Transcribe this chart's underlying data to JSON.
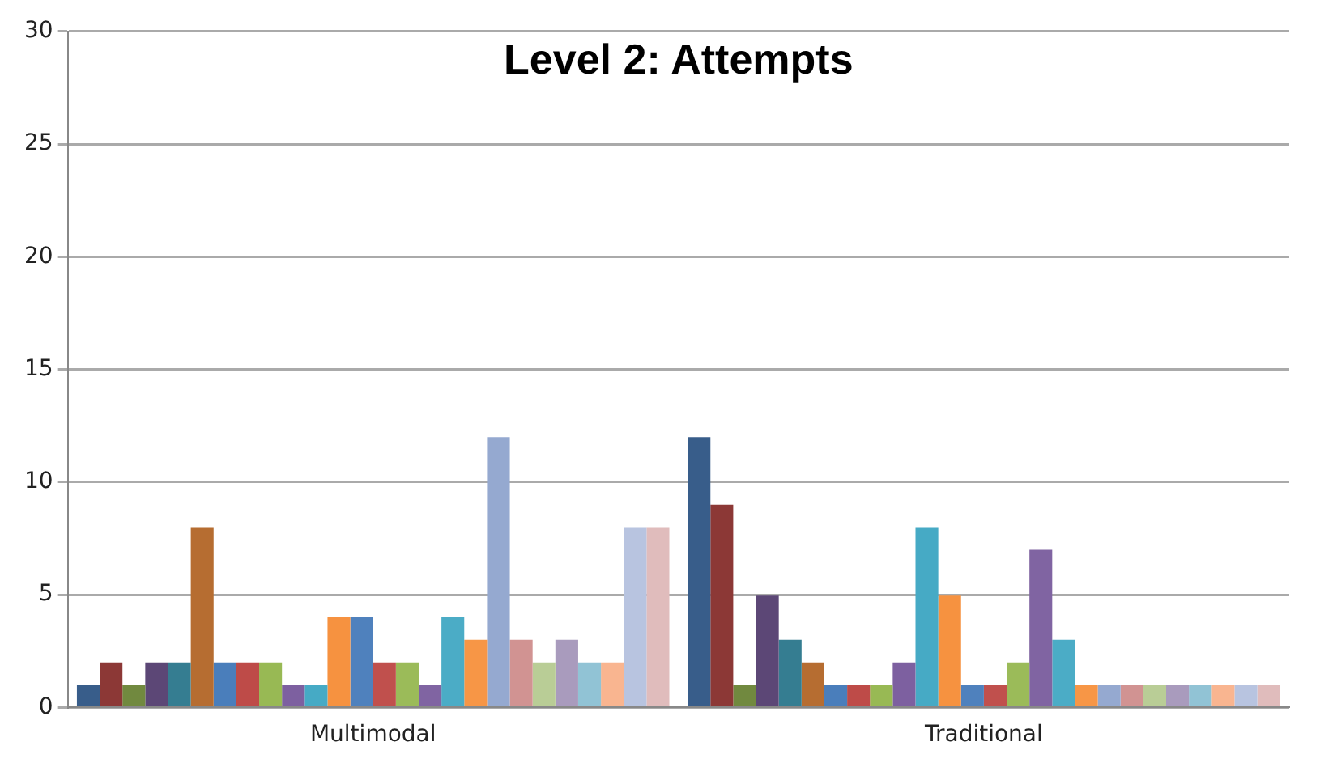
{
  "chart_data": {
    "type": "bar",
    "title": "Level 2: Attempts",
    "categories": [
      "Multimodal",
      "Traditional"
    ],
    "series": [
      {
        "color": "#385d8a",
        "values": [
          1,
          12
        ]
      },
      {
        "color": "#8c3836",
        "values": [
          2,
          9
        ]
      },
      {
        "color": "#71893f",
        "values": [
          1,
          1
        ]
      },
      {
        "color": "#5c4776",
        "values": [
          2,
          5
        ]
      },
      {
        "color": "#357d91",
        "values": [
          2,
          3
        ]
      },
      {
        "color": "#b66d31",
        "values": [
          8,
          2
        ]
      },
      {
        "color": "#4a7ebb",
        "values": [
          2,
          1
        ]
      },
      {
        "color": "#be4b48",
        "values": [
          2,
          1
        ]
      },
      {
        "color": "#98b954",
        "values": [
          2,
          1
        ]
      },
      {
        "color": "#7d60a0",
        "values": [
          1,
          2
        ]
      },
      {
        "color": "#46aac5",
        "values": [
          1,
          8
        ]
      },
      {
        "color": "#f69240",
        "values": [
          4,
          5
        ]
      },
      {
        "color": "#4f81bd",
        "values": [
          4,
          1
        ]
      },
      {
        "color": "#c0504d",
        "values": [
          2,
          1
        ]
      },
      {
        "color": "#9bbb59",
        "values": [
          2,
          2
        ]
      },
      {
        "color": "#8064a2",
        "values": [
          1,
          7
        ]
      },
      {
        "color": "#4bacc6",
        "values": [
          4,
          3
        ]
      },
      {
        "color": "#f79646",
        "values": [
          3,
          1
        ]
      },
      {
        "color": "#95a9d0",
        "values": [
          12,
          1
        ]
      },
      {
        "color": "#d19392",
        "values": [
          3,
          1
        ]
      },
      {
        "color": "#b9cd96",
        "values": [
          2,
          1
        ]
      },
      {
        "color": "#a99bbd",
        "values": [
          3,
          1
        ]
      },
      {
        "color": "#91c3d5",
        "values": [
          2,
          1
        ]
      },
      {
        "color": "#f9b590",
        "values": [
          2,
          1
        ]
      },
      {
        "color": "#b8c4e0",
        "values": [
          8,
          1
        ]
      },
      {
        "color": "#e0bcbc",
        "values": [
          8,
          1
        ]
      }
    ],
    "ylim": [
      0,
      30
    ],
    "yticks": [
      0,
      5,
      10,
      15,
      20,
      25,
      30
    ],
    "grid": "y",
    "legend": false
  }
}
